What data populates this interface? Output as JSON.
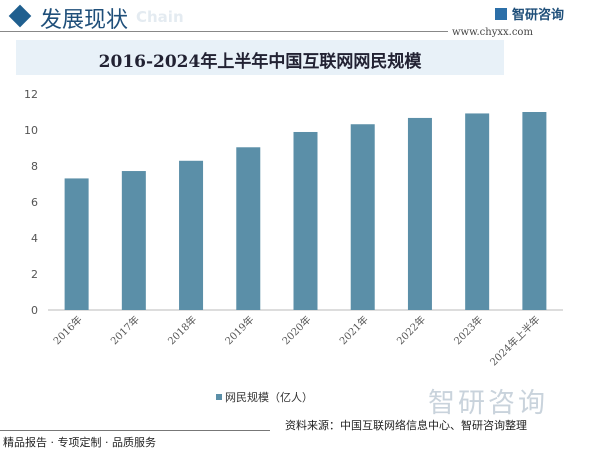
{
  "header": {
    "section": "发展现状",
    "watermark_en": "Chain",
    "brand": "智研咨询",
    "url": "www.chyxx.com"
  },
  "footer": {
    "source": "资料来源：中国互联网络信息中心、智研咨询整理",
    "slogan": "精品报告 · 专项定制 · 品质服务",
    "watermark": "智研咨询"
  },
  "chart_data": {
    "type": "bar",
    "title": "2016-2024年上半年中国互联网网民规模",
    "categories": [
      "2016年",
      "2017年",
      "2018年",
      "2019年",
      "2020年",
      "2021年",
      "2022年",
      "2023年",
      "2024年上半年"
    ],
    "series": [
      {
        "name": "网民规模（亿人）",
        "values": [
          7.31,
          7.72,
          8.29,
          9.04,
          9.89,
          10.32,
          10.67,
          10.92,
          11.0
        ],
        "color": "#5b8fa8"
      }
    ],
    "ylim": [
      0,
      12
    ],
    "yticks": [
      "0",
      "2",
      "4",
      "6",
      "8",
      "10",
      "12"
    ],
    "grid": false,
    "legend": "bottom"
  }
}
